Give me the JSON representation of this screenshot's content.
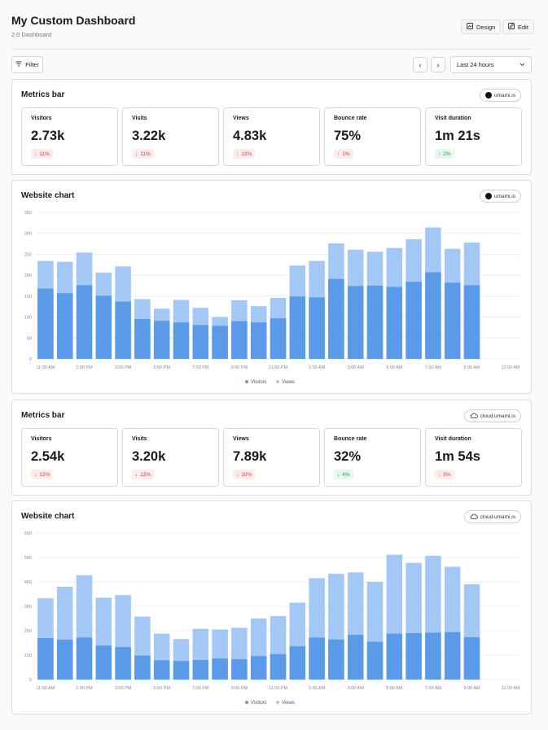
{
  "header": {
    "title": "My Custom Dashboard",
    "subtitle": "2.0 Dashboard",
    "design_label": "Design",
    "edit_label": "Edit"
  },
  "toolbar": {
    "filter_label": "Filter",
    "prev_label": "‹",
    "next_label": "›",
    "range_label": "Last 24 hours"
  },
  "sections": [
    {
      "metrics_title": "Metrics bar",
      "metrics_source": "umami.is",
      "metrics": [
        {
          "label": "Visitors",
          "value": "2.73k",
          "change": "11%",
          "direction": "down"
        },
        {
          "label": "Visits",
          "value": "3.22k",
          "change": "11%",
          "direction": "down"
        },
        {
          "label": "Views",
          "value": "4.83k",
          "change": "13%",
          "direction": "down"
        },
        {
          "label": "Bounce rate",
          "value": "75%",
          "change": "1%",
          "direction": "up-bad"
        },
        {
          "label": "Visit duration",
          "value": "1m 21s",
          "change": "2%",
          "direction": "up"
        }
      ],
      "chart_title": "Website chart",
      "chart_source": "umami.is"
    },
    {
      "metrics_title": "Metrics bar",
      "metrics_source": "cloud.umami.is",
      "metrics": [
        {
          "label": "Visitors",
          "value": "2.54k",
          "change": "12%",
          "direction": "down"
        },
        {
          "label": "Visits",
          "value": "3.20k",
          "change": "12%",
          "direction": "down"
        },
        {
          "label": "Views",
          "value": "7.89k",
          "change": "10%",
          "direction": "down"
        },
        {
          "label": "Bounce rate",
          "value": "32%",
          "change": "4%",
          "direction": "down-good"
        },
        {
          "label": "Visit duration",
          "value": "1m 54s",
          "change": "5%",
          "direction": "down"
        }
      ],
      "chart_title": "Website chart",
      "chart_source": "cloud.umami.is"
    }
  ],
  "colors": {
    "visitors": "#5a9ae8",
    "views": "#a3c8f5",
    "grid": "#ececec",
    "axis_text": "#888888"
  },
  "chart_data": [
    {
      "type": "bar",
      "title": "Website chart",
      "ylim": [
        0,
        350
      ],
      "yticks": [
        0,
        50,
        100,
        150,
        200,
        250,
        300,
        350
      ],
      "xtick_labels": [
        "11:00 AM",
        "1:00 PM",
        "3:00 PM",
        "5:00 PM",
        "7:00 PM",
        "9:00 PM",
        "11:00 PM",
        "1:00 AM",
        "3:00 AM",
        "5:00 AM",
        "7:00 AM",
        "9:00 AM",
        "11:00 AM"
      ],
      "legend": [
        "Visitors",
        "Views"
      ],
      "series": [
        {
          "name": "Visitors",
          "values": [
            168,
            157,
            176,
            151,
            137,
            95,
            91,
            87,
            81,
            79,
            90,
            87,
            97,
            149,
            147,
            191,
            174,
            175,
            172,
            184,
            207,
            182,
            176
          ]
        },
        {
          "name": "Views",
          "values": [
            234,
            232,
            254,
            206,
            221,
            143,
            120,
            141,
            122,
            100,
            140,
            126,
            146,
            223,
            234,
            276,
            261,
            256,
            265,
            286,
            314,
            263,
            278
          ]
        }
      ]
    },
    {
      "type": "bar",
      "title": "Website chart",
      "ylim": [
        0,
        600
      ],
      "yticks": [
        0,
        100,
        200,
        300,
        400,
        500,
        600
      ],
      "xtick_labels": [
        "11:00 AM",
        "1:00 PM",
        "3:00 PM",
        "5:00 PM",
        "7:00 PM",
        "9:00 PM",
        "11:00 PM",
        "1:00 AM",
        "3:00 AM",
        "5:00 AM",
        "7:00 AM",
        "9:00 AM",
        "11:00 AM"
      ],
      "legend": [
        "Visitors",
        "Views"
      ],
      "series": [
        {
          "name": "Visitors",
          "values": [
            170,
            163,
            172,
            139,
            133,
            98,
            79,
            76,
            80,
            86,
            83,
            96,
            104,
            136,
            172,
            164,
            183,
            155,
            188,
            190,
            192,
            194,
            173
          ]
        },
        {
          "name": "Views",
          "values": [
            333,
            380,
            427,
            335,
            346,
            258,
            188,
            166,
            208,
            205,
            212,
            250,
            260,
            315,
            415,
            433,
            439,
            400,
            511,
            478,
            507,
            462,
            390
          ]
        }
      ]
    }
  ]
}
